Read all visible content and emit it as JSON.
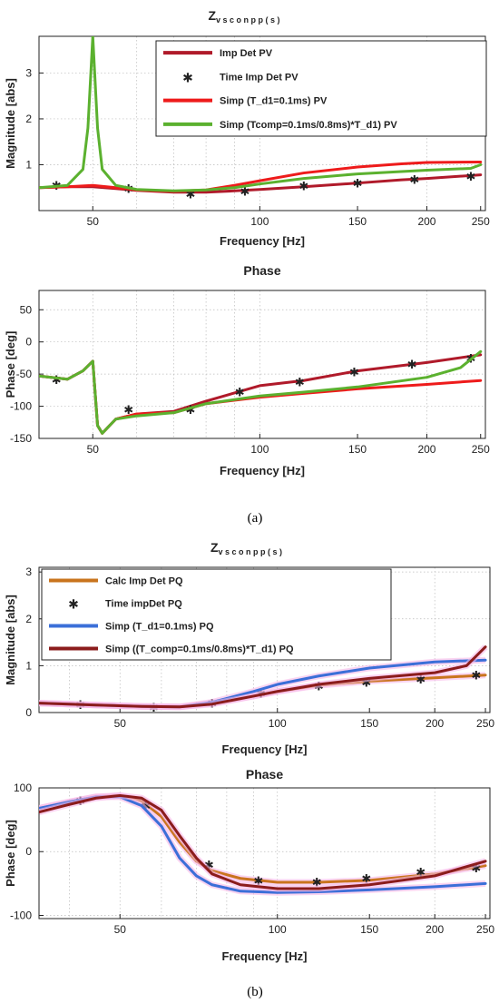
{
  "captions": [
    "(a)",
    "(b)"
  ],
  "chart_data": [
    {
      "type": "line",
      "panel": "a-magnitude",
      "title": "Z",
      "title_sub": "vsconpp(s)",
      "xlabel": "Frequency [Hz]",
      "ylabel": "Magnitude [abs]",
      "xscale": "log",
      "xlim": [
        40,
        255
      ],
      "ylim": [
        0,
        3.8
      ],
      "xticks": [
        50,
        100,
        150,
        200,
        250
      ],
      "yticks": [
        1,
        2,
        3
      ],
      "grid": true,
      "legend_position": "top-right",
      "series": [
        {
          "name": "Imp  Det PV",
          "color": "#b01a2a",
          "style": "line",
          "x": [
            40,
            45,
            50,
            55,
            60,
            70,
            80,
            90,
            100,
            120,
            150,
            180,
            200,
            250
          ],
          "y": [
            0.5,
            0.52,
            0.52,
            0.48,
            0.44,
            0.4,
            0.4,
            0.43,
            0.46,
            0.52,
            0.6,
            0.67,
            0.7,
            0.78
          ]
        },
        {
          "name": "Time Imp Det PV",
          "color": "#111111",
          "style": "marker",
          "x": [
            43,
            58,
            75,
            94,
            120,
            150,
            190,
            240
          ],
          "y": [
            0.55,
            0.48,
            0.37,
            0.43,
            0.54,
            0.6,
            0.68,
            0.75
          ]
        },
        {
          "name": "Simp (T_d1=0.1ms) PV",
          "color": "#ee1b1b",
          "style": "line",
          "x": [
            40,
            45,
            50,
            55,
            60,
            70,
            80,
            90,
            100,
            120,
            150,
            180,
            200,
            250
          ],
          "y": [
            0.5,
            0.52,
            0.55,
            0.5,
            0.45,
            0.42,
            0.45,
            0.55,
            0.65,
            0.82,
            0.95,
            1.02,
            1.05,
            1.06
          ]
        },
        {
          "name": "Simp (Tcomp=0.1ms/0.8ms)*T_d1) PV",
          "color": "#5bb12f",
          "style": "line",
          "x": [
            40,
            45,
            48,
            49,
            50,
            51,
            52,
            55,
            60,
            70,
            80,
            90,
            100,
            120,
            150,
            180,
            200,
            240,
            250
          ],
          "y": [
            0.5,
            0.55,
            0.9,
            1.8,
            3.8,
            1.8,
            0.9,
            0.55,
            0.46,
            0.43,
            0.45,
            0.5,
            0.58,
            0.7,
            0.8,
            0.85,
            0.88,
            0.92,
            1.0
          ]
        }
      ]
    },
    {
      "type": "line",
      "panel": "a-phase",
      "title": "Phase",
      "xlabel": "Frequency [Hz]",
      "ylabel": "Phase [deg]",
      "xscale": "log",
      "xlim": [
        40,
        255
      ],
      "ylim": [
        -150,
        80
      ],
      "xticks": [
        50,
        100,
        150,
        200,
        250
      ],
      "yticks": [
        50,
        0,
        -50,
        -100,
        -150
      ],
      "grid": true,
      "series": [
        {
          "name": "Imp  Det PV",
          "color": "#b01a2a",
          "style": "line",
          "x": [
            40,
            45,
            48,
            50,
            51,
            52,
            55,
            60,
            70,
            80,
            100,
            120,
            150,
            200,
            250
          ],
          "y": [
            -53,
            -58,
            -45,
            -30,
            -130,
            -142,
            -120,
            -112,
            -108,
            -92,
            -68,
            -60,
            -45,
            -32,
            -20
          ]
        },
        {
          "name": "Time Imp Det PV",
          "color": "#111111",
          "style": "marker",
          "x": [
            43,
            58,
            75,
            92,
            118,
            148,
            188,
            240
          ],
          "y": [
            -58,
            -105,
            -105,
            -77,
            -62,
            -46,
            -34,
            -25
          ]
        },
        {
          "name": "Simp (T_d1=0.1ms) PV",
          "color": "#ee1b1b",
          "style": "line",
          "x": [
            40,
            45,
            48,
            50,
            51,
            52,
            55,
            60,
            70,
            80,
            100,
            120,
            150,
            200,
            250
          ],
          "y": [
            -53,
            -58,
            -45,
            -30,
            -130,
            -142,
            -120,
            -112,
            -110,
            -96,
            -86,
            -80,
            -73,
            -66,
            -60
          ]
        },
        {
          "name": "Simp (Tcomp=0.1ms/0.8ms)*T_d1) PV",
          "color": "#5bb12f",
          "style": "line",
          "x": [
            40,
            45,
            48,
            50,
            51,
            52,
            55,
            60,
            70,
            80,
            100,
            120,
            150,
            200,
            230,
            250
          ],
          "y": [
            -53,
            -58,
            -45,
            -30,
            -130,
            -142,
            -120,
            -115,
            -110,
            -96,
            -84,
            -78,
            -70,
            -55,
            -40,
            -15
          ]
        }
      ]
    },
    {
      "type": "line",
      "panel": "b-magnitude",
      "title": "Z",
      "title_sub": "vsconpp(s)",
      "xlabel": "Frequency [Hz]",
      "ylabel": "Magnitude [abs]",
      "xscale": "log",
      "xlim": [
        35,
        255
      ],
      "ylim": [
        0,
        3.1
      ],
      "xticks": [
        50,
        100,
        150,
        200,
        250
      ],
      "yticks": [
        0,
        1,
        2,
        3
      ],
      "grid": true,
      "legend_position": "top-left",
      "series": [
        {
          "name": "Calc Imp Det PQ",
          "color": "#c9741d",
          "style": "line",
          "x": [
            35,
            45,
            55,
            65,
            75,
            90,
            100,
            120,
            150,
            200,
            250
          ],
          "y": [
            0.2,
            0.16,
            0.13,
            0.12,
            0.2,
            0.35,
            0.45,
            0.58,
            0.67,
            0.74,
            0.8
          ]
        },
        {
          "name": "Time  impDet PQ",
          "color": "#111111",
          "style": "marker",
          "x": [
            42,
            58,
            75,
            93,
            120,
            148,
            188,
            240
          ],
          "y": [
            0.17,
            0.12,
            0.2,
            0.42,
            0.57,
            0.65,
            0.72,
            0.8
          ]
        },
        {
          "name": "Simp (T_d1=0.1ms) PQ",
          "color": "#3b6fd8",
          "style": "line",
          "x": [
            35,
            45,
            55,
            65,
            75,
            90,
            100,
            120,
            150,
            200,
            250
          ],
          "y": [
            0.2,
            0.16,
            0.13,
            0.12,
            0.22,
            0.45,
            0.6,
            0.78,
            0.95,
            1.08,
            1.12
          ]
        },
        {
          "name": "Simp ((T_comp=0.1ms/0.8ms)*T_d1) PQ",
          "color": "#8b1c1c",
          "style": "line",
          "x": [
            35,
            45,
            55,
            65,
            75,
            90,
            100,
            120,
            150,
            200,
            230,
            250
          ],
          "y": [
            0.2,
            0.16,
            0.13,
            0.12,
            0.18,
            0.35,
            0.45,
            0.6,
            0.73,
            0.85,
            1.0,
            1.4
          ]
        }
      ]
    },
    {
      "type": "line",
      "panel": "b-phase",
      "title": "Phase",
      "xlabel": "Frequency [Hz]",
      "ylabel": "Phase [deg]",
      "xscale": "log",
      "xlim": [
        35,
        255
      ],
      "ylim": [
        -105,
        100
      ],
      "xticks": [
        50,
        100,
        150,
        200,
        250
      ],
      "yticks": [
        100,
        0,
        -100
      ],
      "grid": true,
      "series": [
        {
          "name": "Calc Imp Det PQ",
          "color": "#c9741d",
          "style": "line",
          "x": [
            35,
            40,
            45,
            50,
            55,
            60,
            65,
            70,
            75,
            85,
            100,
            120,
            150,
            200,
            250
          ],
          "y": [
            68,
            78,
            86,
            88,
            80,
            55,
            15,
            -15,
            -30,
            -42,
            -48,
            -48,
            -45,
            -35,
            -22
          ]
        },
        {
          "name": "Time  impDet PQ",
          "color": "#111111",
          "style": "marker",
          "x": [
            42,
            56,
            74,
            92,
            119,
            148,
            188,
            240
          ],
          "y": [
            80,
            72,
            -20,
            -45,
            -47,
            -42,
            -32,
            -25
          ]
        },
        {
          "name": "Simp (T_d1=0.1ms) PQ",
          "color": "#3b6fd8",
          "style": "line",
          "x": [
            35,
            40,
            45,
            50,
            55,
            60,
            65,
            70,
            75,
            85,
            100,
            120,
            150,
            200,
            250
          ],
          "y": [
            68,
            78,
            86,
            86,
            72,
            40,
            -10,
            -38,
            -52,
            -62,
            -64,
            -63,
            -60,
            -55,
            -50
          ]
        },
        {
          "name": "Simp ((T_comp=0.1ms/0.8ms)*T_d1) PQ",
          "color": "#8b1c1c",
          "style": "line",
          "x": [
            35,
            40,
            45,
            50,
            55,
            60,
            65,
            70,
            75,
            85,
            100,
            120,
            150,
            200,
            250
          ],
          "y": [
            62,
            74,
            84,
            88,
            84,
            65,
            25,
            -10,
            -35,
            -52,
            -58,
            -58,
            -52,
            -38,
            -15
          ]
        }
      ]
    }
  ]
}
